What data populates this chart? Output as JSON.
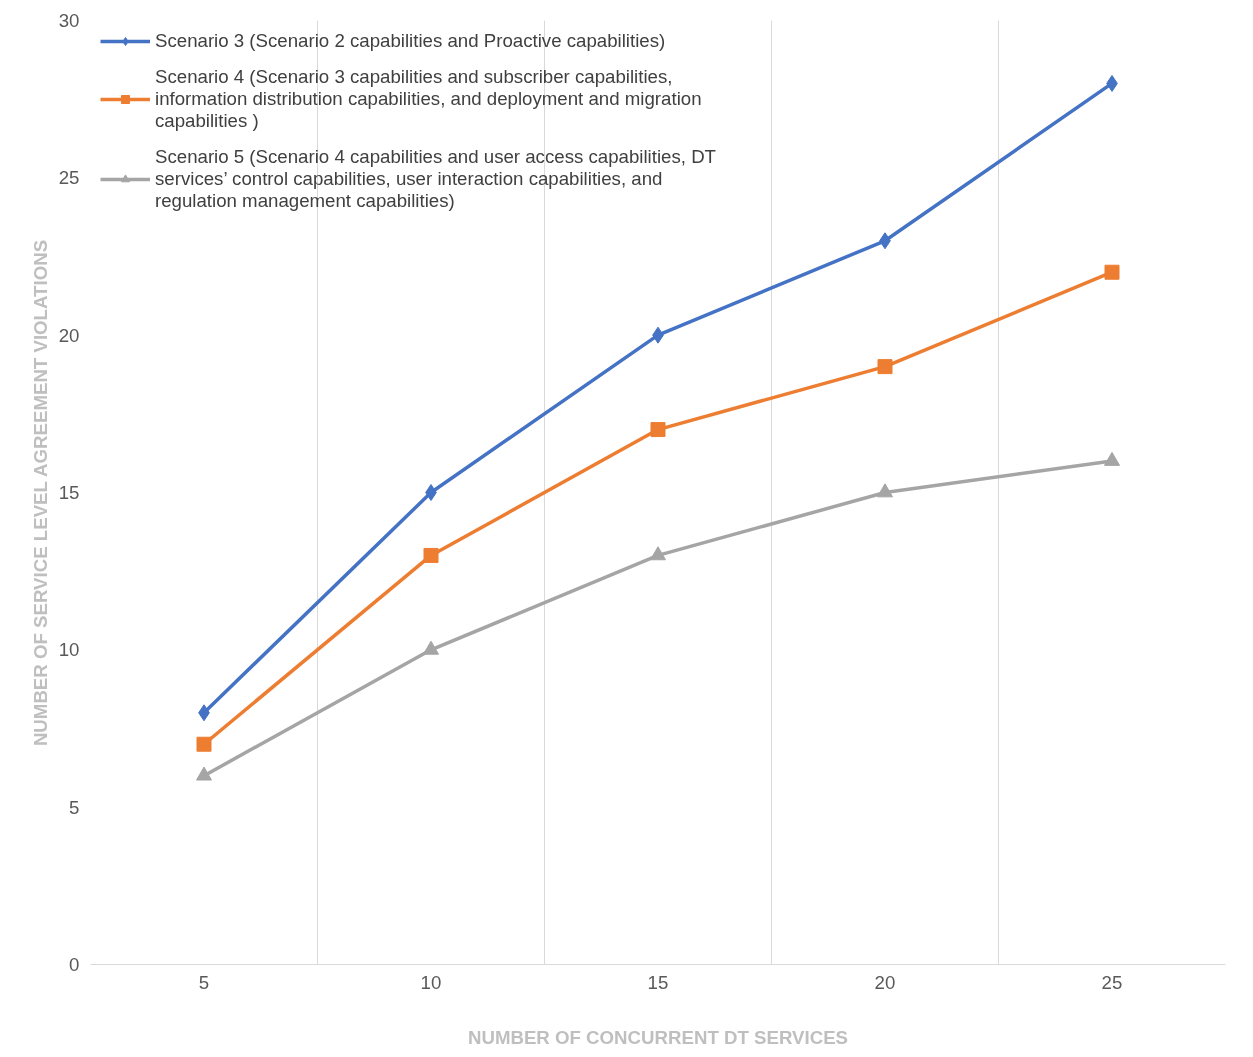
{
  "chart_data": {
    "type": "line",
    "xlabel": "NUMBER OF CONCURRENT DT SERVICES",
    "ylabel": "NUMBER OF SERVICE LEVEL AGREEMENT VIOLATIONS",
    "categories": [
      "5",
      "10",
      "15",
      "20",
      "25"
    ],
    "series": [
      {
        "name": "Scenario 3 (Scenario 2 capabilities and Proactive capabilities)",
        "color": "#4472c4",
        "marker": "diamond",
        "values": [
          8,
          15,
          20,
          23,
          28
        ]
      },
      {
        "name": "Scenario 4 (Scenario 3 capabilities and subscriber capabilities, information distribution capabilities, and deployment and migration capabilities )",
        "color": "#ed7d31",
        "marker": "square",
        "values": [
          7,
          13,
          17,
          19,
          22
        ]
      },
      {
        "name": "Scenario 5 (Scenario 4 capabilities and user access capabilities, DT services’ control capabilities, user interaction capabilities, and regulation management capabilities)",
        "color": "#a5a5a5",
        "marker": "triangle",
        "values": [
          6,
          10,
          13,
          15,
          16
        ]
      }
    ],
    "ylim": [
      0,
      30
    ],
    "yticks": [
      0,
      5,
      10,
      15,
      20,
      25,
      30
    ],
    "grid": "x",
    "legend": "top left",
    "line_style": "solid"
  }
}
